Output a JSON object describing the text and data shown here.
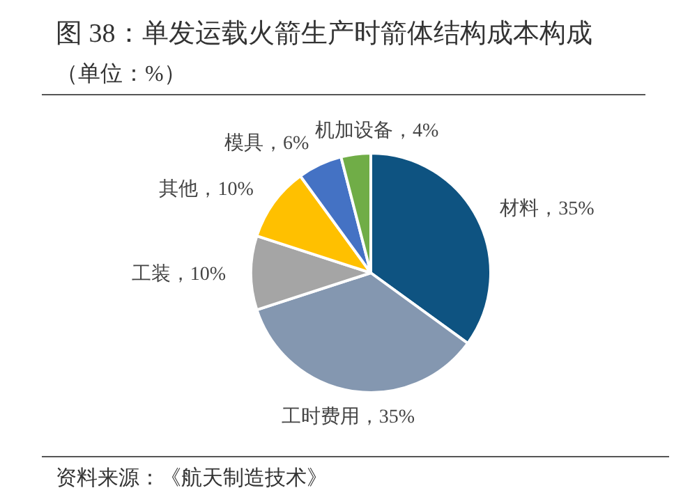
{
  "chart_data": {
    "type": "pie",
    "title": "图 38：单发运载火箭生产时箭体结构成本构成",
    "subtitle": "（单位：%）",
    "categories": [
      "材料",
      "工时费用",
      "工装",
      "其他",
      "模具",
      "机加设备"
    ],
    "values": [
      35,
      35,
      10,
      10,
      6,
      4
    ],
    "value_labels": [
      "35%",
      "35%",
      "10%",
      "10%",
      "6%",
      "4%"
    ],
    "colors": [
      "#0e5381",
      "#8497b0",
      "#a5a5a5",
      "#ffc000",
      "#4472c4",
      "#70ad47"
    ],
    "annotations": [
      "资料来源：《航天制造技术》"
    ]
  }
}
